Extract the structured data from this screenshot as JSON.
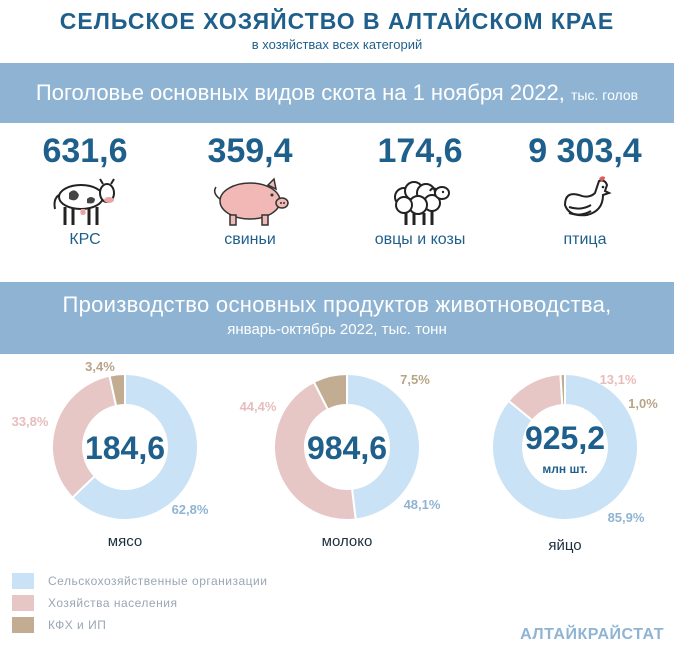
{
  "header": {
    "title": "СЕЛЬСКОЕ ХОЗЯЙСТВО В АЛТАЙСКОМ КРАЕ",
    "subtitle": "в хозяйствах всех категорий"
  },
  "livestock": {
    "heading": "Поголовье основных видов скота на 1 ноября 2022,",
    "unit": "тыс. голов",
    "items": [
      {
        "value": "631,6",
        "label": "КРС",
        "icon": "cow-icon"
      },
      {
        "value": "359,4",
        "label": "свиньи",
        "icon": "pig-icon"
      },
      {
        "value": "174,6",
        "label": "овцы и козы",
        "icon": "sheep-icon"
      },
      {
        "value": "9 303,4",
        "label": "птица",
        "icon": "hen-icon"
      }
    ]
  },
  "production": {
    "heading": "Производство основных продуктов животноводства,",
    "subheading": "январь-октябрь 2022, тыс. тонн"
  },
  "colors": {
    "agri": "#c9e2f5",
    "households": "#e7c6c6",
    "farms": "#c2ad93",
    "text_dark": "#1f5f8b",
    "band": "#8fb4d3"
  },
  "chart_data": [
    {
      "type": "pie",
      "name": "мясо",
      "total": "184,6",
      "unit": "",
      "labels": [
        "Сельскохозяйственные организации",
        "Хозяйства населения",
        "КФХ и ИП"
      ],
      "values": [
        62.8,
        33.8,
        3.4
      ],
      "value_labels": [
        "62,8%",
        "33,8%",
        "3,4%"
      ]
    },
    {
      "type": "pie",
      "name": "молоко",
      "total": "984,6",
      "unit": "",
      "labels": [
        "Сельскохозяйственные организации",
        "Хозяйства населения",
        "КФХ и ИП"
      ],
      "values": [
        48.1,
        44.4,
        7.5
      ],
      "value_labels": [
        "48,1%",
        "44,4%",
        "7,5%"
      ]
    },
    {
      "type": "pie",
      "name": "яйцо",
      "total": "925,2",
      "unit": "млн шт.",
      "labels": [
        "Сельскохозяйственные организации",
        "Хозяйства населения",
        "КФХ и ИП"
      ],
      "values": [
        85.9,
        13.1,
        1.0
      ],
      "value_labels": [
        "85,9%",
        "13,1%",
        "1,0%"
      ]
    }
  ],
  "legend": [
    {
      "label": "Сельскохозяйственные организации",
      "color": "#c9e2f5"
    },
    {
      "label": "Хозяйства населения",
      "color": "#e7c6c6"
    },
    {
      "label": "КФХ и ИП",
      "color": "#c2ad93"
    }
  ],
  "footer": {
    "brand": "АЛТАЙКРАЙСТАТ"
  }
}
